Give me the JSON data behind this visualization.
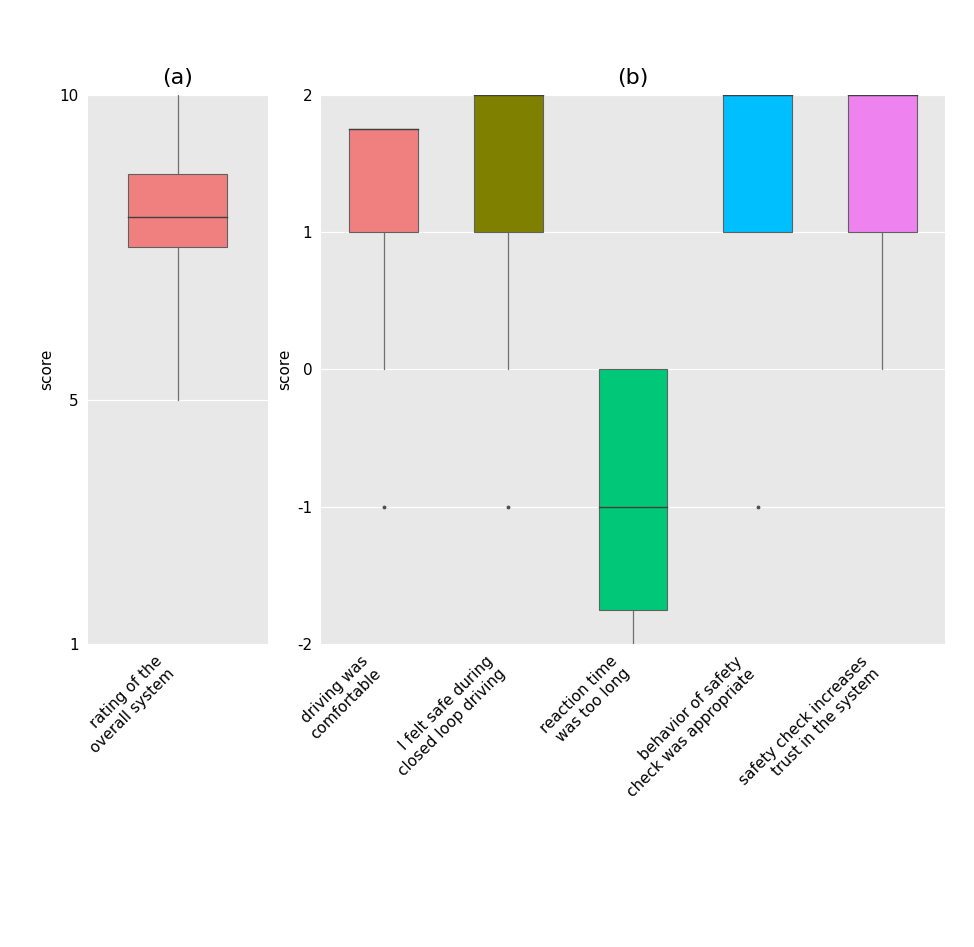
{
  "panel_a": {
    "label": "rating of the\noverall system",
    "color": "#F08080",
    "whisker_low": 5.0,
    "q1": 7.5,
    "median": 8.0,
    "q3": 8.7,
    "whisker_high": 10.0,
    "outliers": [],
    "ylim": [
      1,
      10
    ],
    "yticks": [
      1,
      5,
      10
    ],
    "ylabel": "score"
  },
  "panel_b": {
    "ylabel": "score",
    "ylim": [
      -2,
      2
    ],
    "yticks": [
      -2,
      -1,
      0,
      1,
      2
    ],
    "boxes": [
      {
        "label": "driving was\ncomfortable",
        "color": "#F08080",
        "whisker_low": 0.0,
        "q1": 1.0,
        "median": 1.75,
        "q3": 1.75,
        "whisker_high": 1.75,
        "outliers": [
          -1.0
        ]
      },
      {
        "label": "I felt safe during\nclosed loop driving",
        "color": "#808000",
        "whisker_low": 0.0,
        "q1": 1.0,
        "median": 2.0,
        "q3": 2.0,
        "whisker_high": 2.0,
        "outliers": [
          -1.0
        ]
      },
      {
        "label": "reaction time\nwas too long",
        "color": "#00C878",
        "whisker_low": -2.0,
        "q1": -1.75,
        "median": -1.0,
        "q3": 0.0,
        "whisker_high": 0.0,
        "outliers": []
      },
      {
        "label": "behavior of safety\ncheck was appropriate",
        "color": "#00BFFF",
        "whisker_low": 1.0,
        "q1": 1.0,
        "median": 2.0,
        "q3": 2.0,
        "whisker_high": 2.0,
        "outliers": [
          -1.0
        ]
      },
      {
        "label": "safety check increases\ntrust in the system",
        "color": "#EE82EE",
        "whisker_low": 0.0,
        "q1": 1.0,
        "median": 2.0,
        "q3": 2.0,
        "whisker_high": 2.0,
        "outliers": []
      }
    ]
  },
  "bg_color": "#E8E8E8",
  "title_a": "(a)",
  "title_b": "(b)",
  "title_fontsize": 16,
  "label_fontsize": 11,
  "tick_fontsize": 11,
  "box_width": 0.55
}
